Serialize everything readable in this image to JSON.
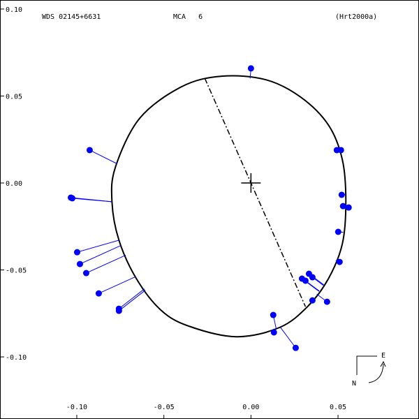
{
  "chart_data": {
    "type": "scatter",
    "header": {
      "left": "WDS 02145+6631",
      "center": "MCA   6",
      "right": "(Hrt2000a)"
    },
    "x": [
      0.0,
      -0.0926,
      -0.1034,
      -0.1026,
      -0.0998,
      -0.0982,
      -0.0946,
      -0.0874,
      -0.0758,
      -0.0758,
      0.0128,
      0.0132,
      0.0257,
      0.0353,
      0.0437,
      0.0293,
      0.0313,
      0.0333,
      0.0353,
      0.0509,
      0.0501,
      0.0529,
      0.0521,
      0.0561,
      0.0493,
      0.0517
    ],
    "values": [
      0.0659,
      0.0189,
      -0.0084,
      -0.0088,
      -0.0398,
      -0.0466,
      -0.0518,
      -0.0635,
      -0.0723,
      -0.0735,
      -0.0759,
      -0.0859,
      -0.0948,
      -0.0675,
      -0.0683,
      -0.055,
      -0.0562,
      -0.0522,
      -0.0542,
      -0.0454,
      -0.0281,
      -0.0133,
      -0.0068,
      -0.0141,
      0.0189,
      0.0189
    ],
    "color": "#0000ff",
    "orbit": {
      "x": [
        -0.0168,
        -0.0397,
        -0.0638,
        -0.0778,
        -0.0798,
        -0.0758,
        -0.0658,
        -0.0517,
        -0.0357,
        -0.0084,
        0.0164,
        0.0325,
        0.0445,
        0.0525,
        0.0545,
        0.0525,
        0.0445,
        0.0285,
        0.0084
      ],
      "y": [
        0.0614,
        0.0554,
        0.0373,
        0.0092,
        -0.0108,
        -0.0329,
        -0.055,
        -0.0731,
        -0.0823,
        -0.0884,
        -0.0831,
        -0.0711,
        -0.055,
        -0.0349,
        -0.0108,
        0.0133,
        0.0333,
        0.0494,
        0.0594
      ]
    },
    "node_line": {
      "x": [
        -0.0265,
        0.0313
      ],
      "y": [
        0.0602,
        -0.0711
      ]
    },
    "xlim": [
      -0.1441,
      0.0965
    ],
    "ylim": [
      -0.1357,
      0.1052
    ],
    "xticks": [
      {
        "value": -0.1,
        "label": "-0.10"
      },
      {
        "value": -0.05,
        "label": "-0.05"
      },
      {
        "value": 0,
        "label": "0.00"
      },
      {
        "value": 0.05,
        "label": "0.05"
      }
    ],
    "yticks": [
      {
        "value": 0.1,
        "label": "0.10"
      },
      {
        "value": 0.05,
        "label": "0.05"
      },
      {
        "value": 0,
        "label": "0.00"
      },
      {
        "value": -0.05,
        "label": "-0.05"
      },
      {
        "value": -0.1,
        "label": "-0.10"
      }
    ],
    "compass": {
      "east": "E",
      "north": "N"
    }
  }
}
